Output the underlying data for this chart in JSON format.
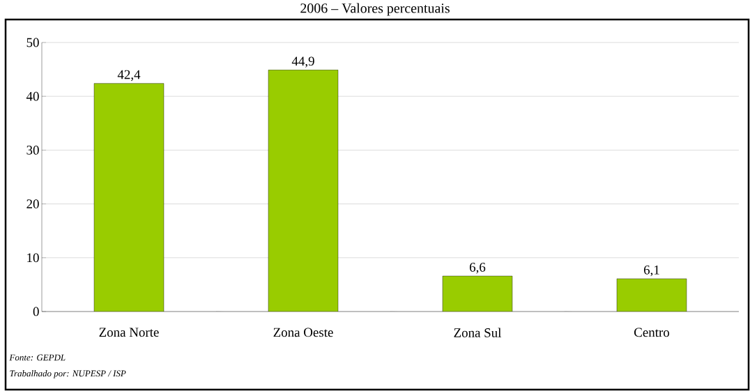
{
  "chart_data": {
    "type": "bar",
    "title": "2006 – Valores percentuais",
    "categories": [
      "Zona Norte",
      "Zona Oeste",
      "Zona Sul",
      "Centro"
    ],
    "values": [
      42.4,
      44.9,
      6.6,
      6.1
    ],
    "value_labels": [
      "42,4",
      "44,9",
      "6,6",
      "6,1"
    ],
    "color": "#99cc00",
    "ylim": [
      0,
      50
    ],
    "yticks": [
      0,
      10,
      20,
      30,
      40,
      50
    ],
    "grid": "y",
    "annotations": [
      "*Fonte: GEPDL*",
      "*Trabalhado por: NUPESP / ISP*"
    ]
  }
}
